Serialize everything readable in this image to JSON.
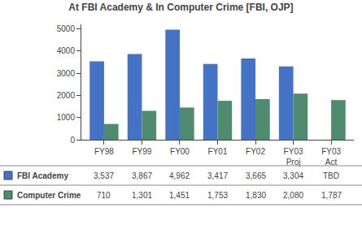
{
  "chart_data": {
    "type": "bar",
    "title": "At FBI Academy & In Computer Crime [FBI, OJP]",
    "categories": [
      "FY98",
      "FY99",
      "FY00",
      "FY01",
      "FY02",
      "FY03\nProj",
      "FY03\nAct"
    ],
    "series": [
      {
        "name": "FBI Academy",
        "color": "#4472C4",
        "values": [
          3537,
          3867,
          4962,
          3417,
          3665,
          3304,
          null
        ],
        "value_labels": [
          "3,537",
          "3,867",
          "4,962",
          "3,417",
          "3,665",
          "3,304",
          "TBD"
        ]
      },
      {
        "name": "Computer Crime",
        "color": "#4E8B6F",
        "values": [
          710,
          1301,
          1451,
          1753,
          1830,
          2080,
          1787
        ],
        "value_labels": [
          "710",
          "1,301",
          "1,451",
          "1,753",
          "1,830",
          "2,080",
          "1,787"
        ]
      }
    ],
    "ylim": [
      0,
      5200
    ],
    "yticks": [
      0,
      1000,
      2000,
      3000,
      4000,
      5000
    ],
    "grid": false
  }
}
